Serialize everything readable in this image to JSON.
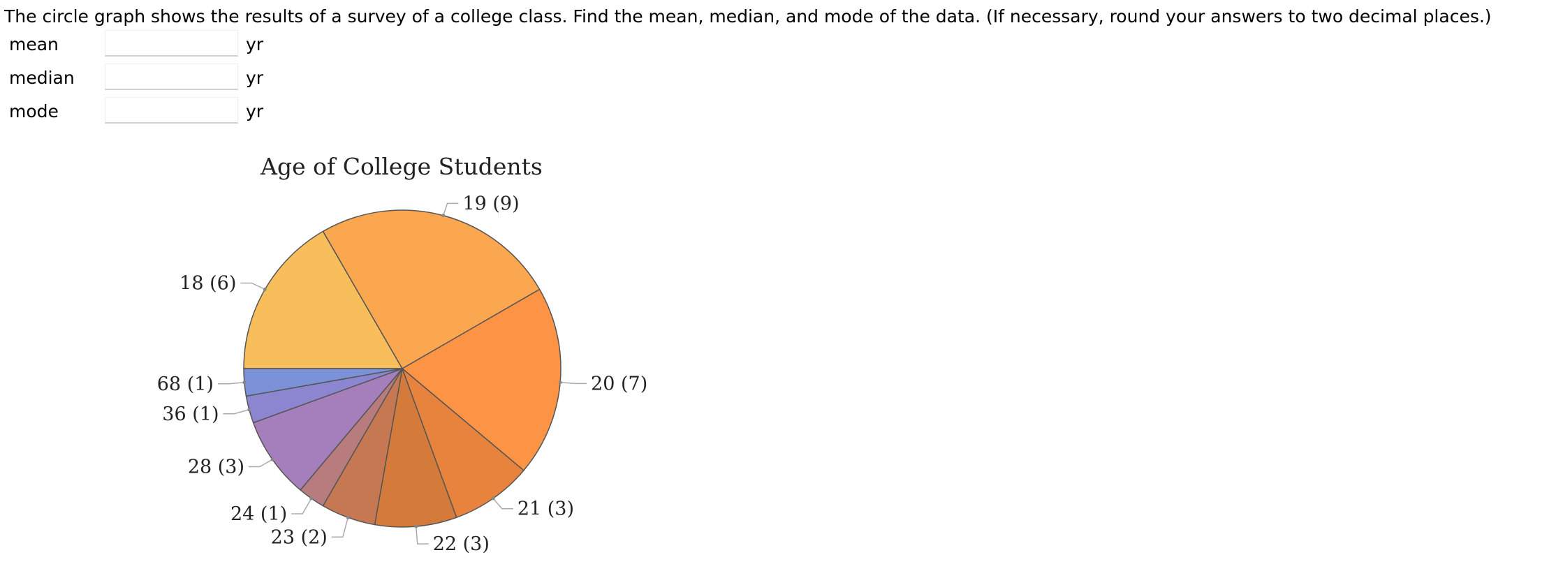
{
  "question": {
    "text": "The circle graph shows the results of a survey of a college class. Find the mean, median, and mode of the data. (If necessary, round your answers to two decimal places.)"
  },
  "answers": [
    {
      "label": "mean",
      "unit": "yr",
      "value": ""
    },
    {
      "label": "median",
      "unit": "yr",
      "value": ""
    },
    {
      "label": "mode",
      "unit": "yr",
      "value": ""
    }
  ],
  "chart_data": {
    "type": "pie",
    "title": "Age of College Students",
    "slices": [
      {
        "age": 18,
        "count": 6,
        "label": "18 (6)",
        "color": "#f8be5c"
      },
      {
        "age": 19,
        "count": 9,
        "label": "19 (9)",
        "color": "#fba74f"
      },
      {
        "age": 20,
        "count": 7,
        "label": "20 (7)",
        "color": "#fd9344"
      },
      {
        "age": 21,
        "count": 3,
        "label": "21 (3)",
        "color": "#e8833d"
      },
      {
        "age": 22,
        "count": 3,
        "label": "22 (3)",
        "color": "#d47b3c"
      },
      {
        "age": 23,
        "count": 2,
        "label": "23 (2)",
        "color": "#c57852"
      },
      {
        "age": 24,
        "count": 1,
        "label": "24 (1)",
        "color": "#b87b7e"
      },
      {
        "age": 28,
        "count": 3,
        "label": "28 (3)",
        "color": "#a47fbb"
      },
      {
        "age": 36,
        "count": 1,
        "label": "36 (1)",
        "color": "#8b86cf"
      },
      {
        "age": 68,
        "count": 1,
        "label": "68 (1)",
        "color": "#7b91d8"
      }
    ]
  }
}
